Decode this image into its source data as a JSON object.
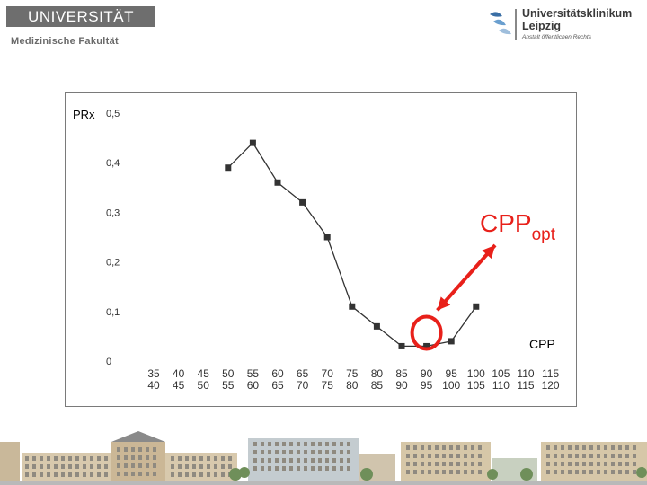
{
  "header": {
    "university_logo_text": "UNIVERSITÄT LEIPZIG",
    "faculty": "Medizinische Fakultät",
    "clinic_name_line1": "Universitätsklinikum",
    "clinic_name_line2": "Leipzig",
    "clinic_subtitle": "Anstalt öffentlichen Rechts"
  },
  "colors": {
    "line": "#333333",
    "marker": "#333333",
    "annotation": "#e8201a",
    "logo_gray": "#6e6e6e",
    "clinic_blue": "#3a6ea5"
  },
  "chart_data": {
    "type": "line",
    "ylabel": "PRx",
    "xlabel": "CPP",
    "ylim": [
      0,
      0.5
    ],
    "yticks": [
      "0",
      "0,1",
      "0,2",
      "0,3",
      "0,4",
      "0,5"
    ],
    "categories": [
      "35 40",
      "40 45",
      "45 50",
      "50 55",
      "55 60",
      "60 65",
      "65 70",
      "70 75",
      "75 80",
      "80 85",
      "85 90",
      "90 95",
      "95 100",
      "100 105",
      "105 110",
      "110 115",
      "115 120"
    ],
    "category_labels": [
      [
        "35",
        "40"
      ],
      [
        "40",
        "45"
      ],
      [
        "45",
        "50"
      ],
      [
        "50",
        "55"
      ],
      [
        "55",
        "60"
      ],
      [
        "60",
        "65"
      ],
      [
        "65",
        "70"
      ],
      [
        "70",
        "75"
      ],
      [
        "75",
        "80"
      ],
      [
        "80",
        "85"
      ],
      [
        "85",
        "90"
      ],
      [
        "90",
        "95"
      ],
      [
        "95",
        "100"
      ],
      [
        "100",
        "105"
      ],
      [
        "105",
        "110"
      ],
      [
        "110",
        "115"
      ],
      [
        "115",
        "120"
      ]
    ],
    "series": [
      {
        "values": [
          null,
          null,
          null,
          0.39,
          0.44,
          0.36,
          0.32,
          0.25,
          0.11,
          0.07,
          0.03,
          0.03,
          0.04,
          0.11,
          null,
          null,
          null
        ]
      }
    ],
    "annotations": [
      {
        "text": "CPP",
        "subscript": "opt",
        "target_category": "90 95",
        "marker": "circle",
        "arrow": "double-headed"
      }
    ],
    "grid": false,
    "legend": "none"
  }
}
